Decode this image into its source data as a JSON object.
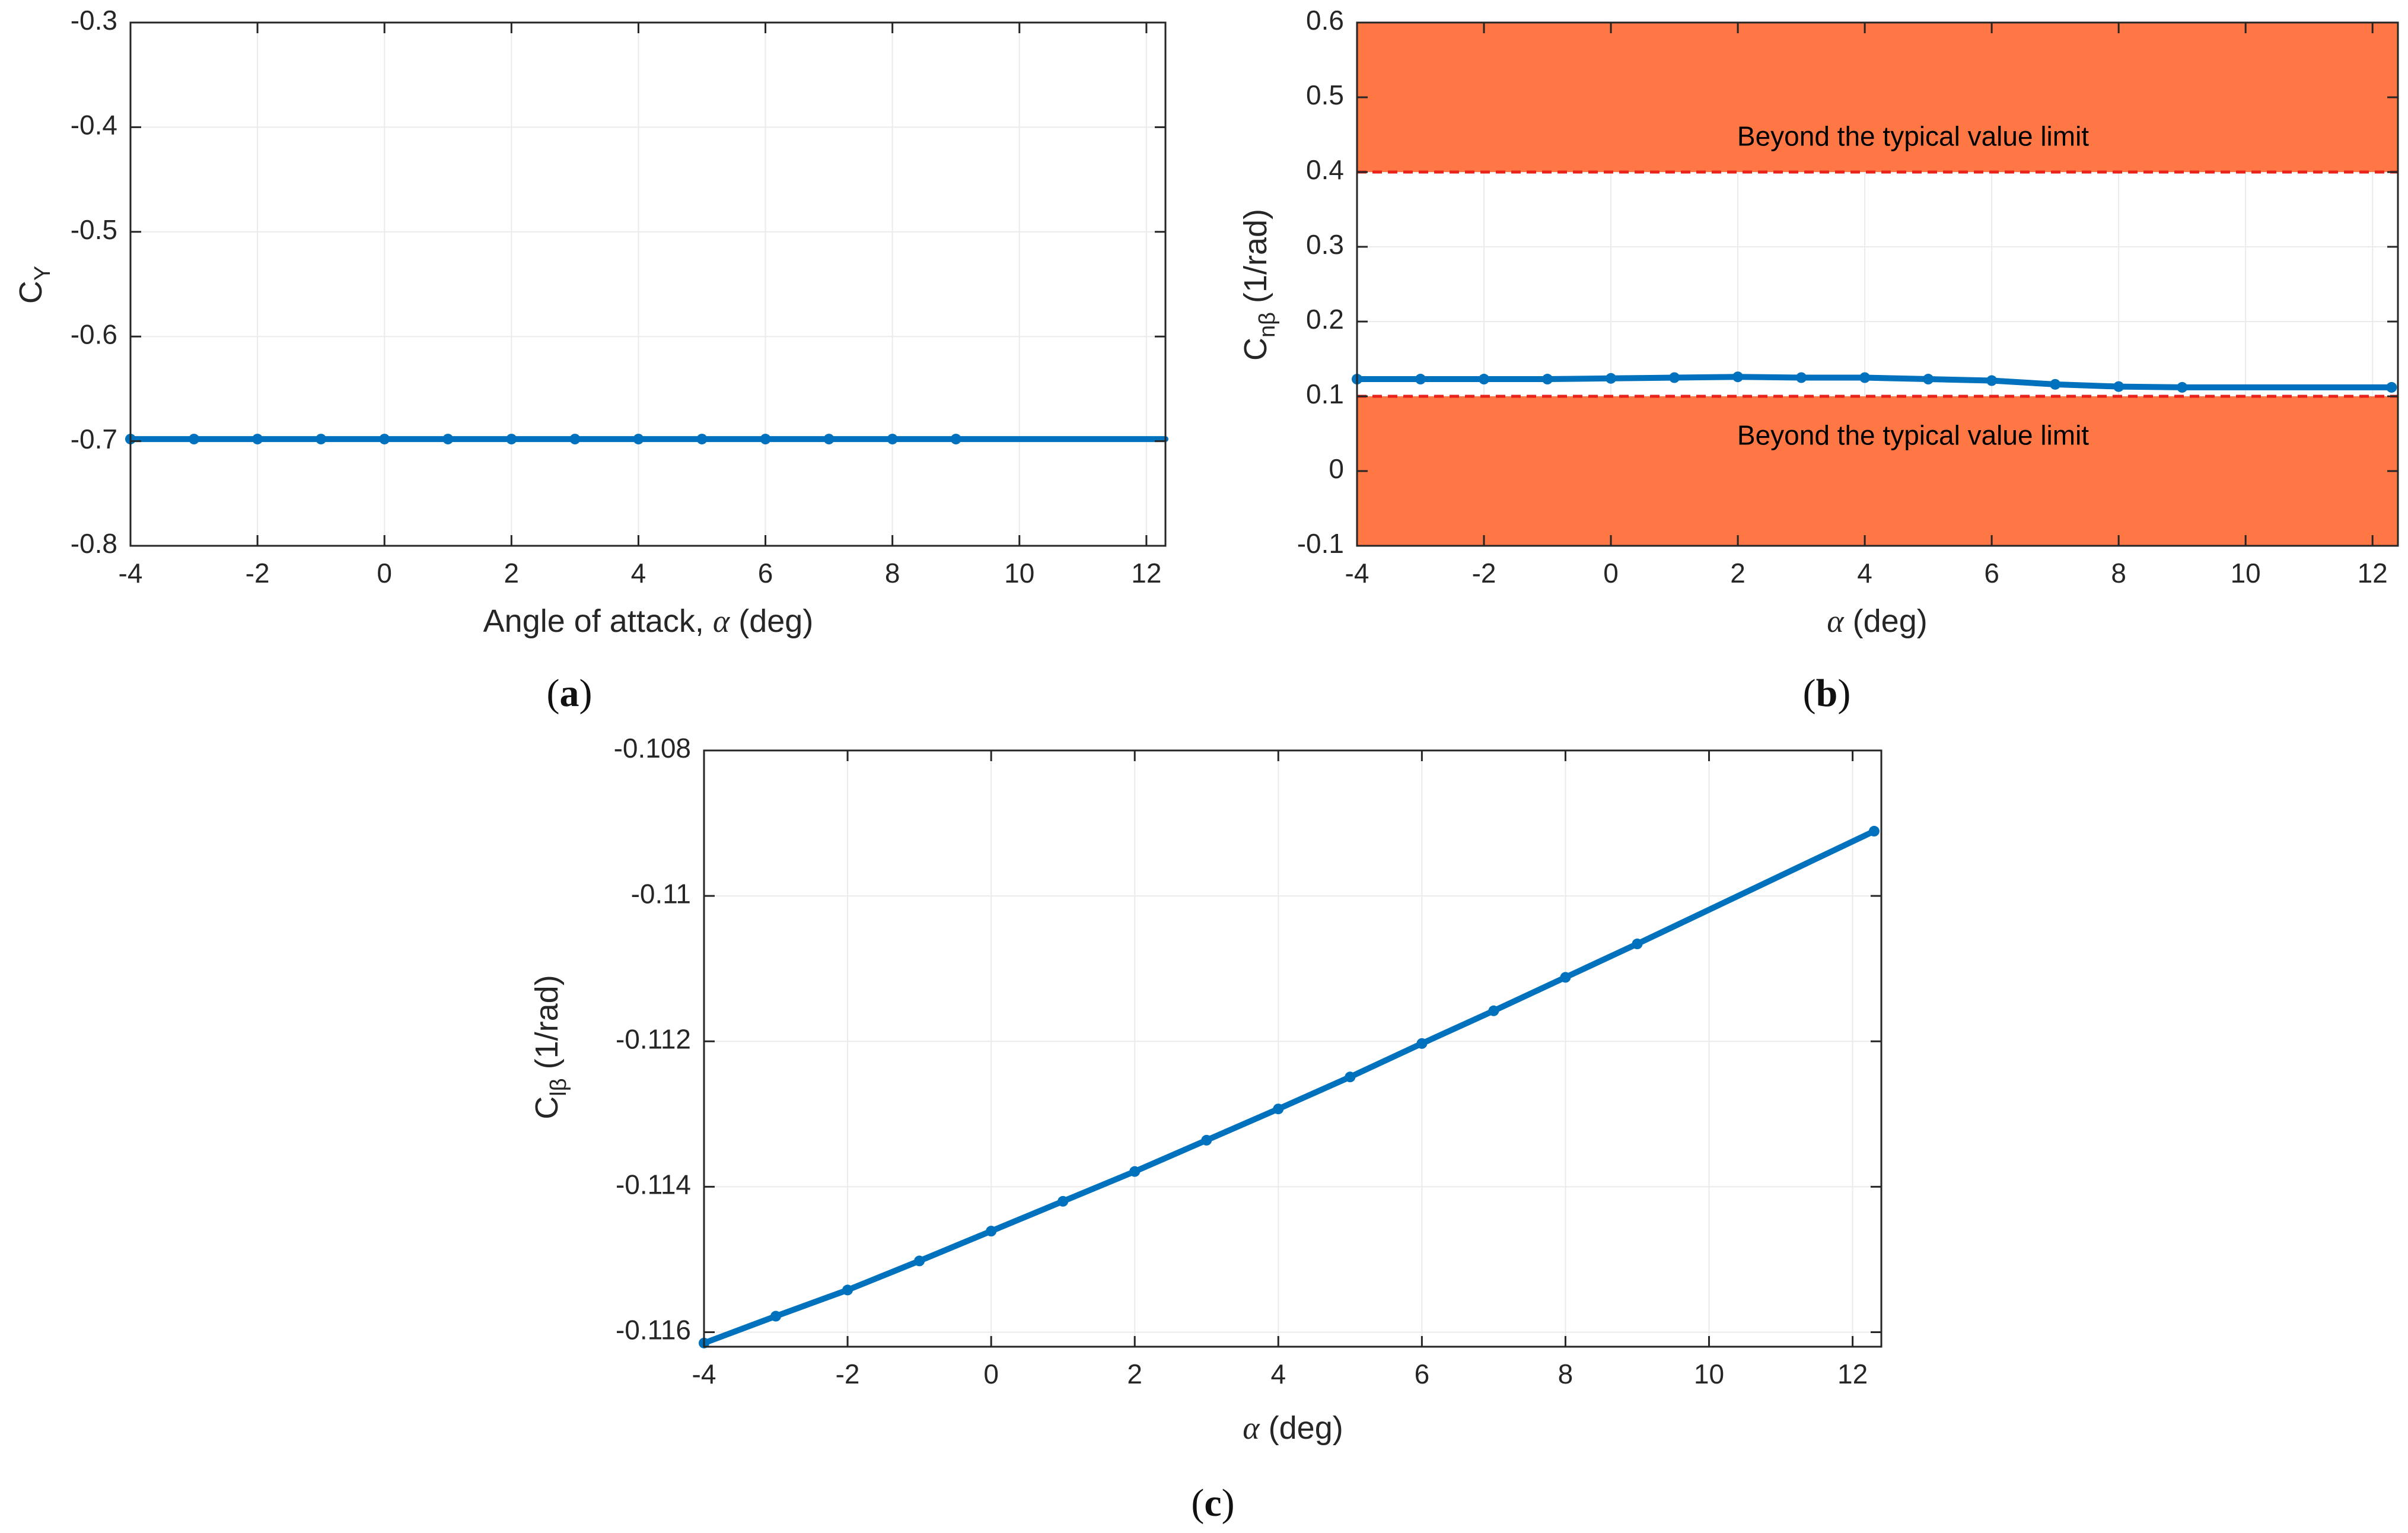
{
  "colors": {
    "series": "#0072BD",
    "band": "#FF7744",
    "limit_line": "#E8231C",
    "grid": "#ebebeb",
    "axes": "#262626"
  },
  "chart_data": [
    {
      "id": "a",
      "type": "line",
      "caption_letter": "a",
      "xlabel_text": "Angle of attack, ",
      "xlabel_symbol": "α",
      "xlabel_unit": " (deg)",
      "ylabel_main": "C",
      "ylabel_sub": "Y",
      "ylabel_unit": "",
      "xlim": [
        -4,
        12.3
      ],
      "ylim": [
        -0.8,
        -0.3
      ],
      "xticks": [
        -4,
        -2,
        0,
        2,
        4,
        6,
        8,
        10,
        12
      ],
      "xtick_labels": [
        "-4",
        "-2",
        "0",
        "2",
        "4",
        "6",
        "8",
        "10",
        "12"
      ],
      "yticks": [
        -0.8,
        -0.7,
        -0.6,
        -0.5,
        -0.4,
        -0.3
      ],
      "ytick_labels": [
        "-0.8",
        "-0.7",
        "-0.6",
        "-0.5",
        "-0.4",
        "-0.3"
      ],
      "grid": true,
      "series": [
        {
          "name": "C_Y",
          "x": [
            -4,
            -3,
            -2,
            -1,
            0,
            1,
            2,
            3,
            4,
            5,
            6,
            7,
            8,
            9,
            12.3
          ],
          "y": [
            -0.698,
            -0.698,
            -0.698,
            -0.698,
            -0.698,
            -0.698,
            -0.698,
            -0.698,
            -0.698,
            -0.698,
            -0.698,
            -0.698,
            -0.698,
            -0.698,
            -0.698
          ],
          "marker_x": [
            -4,
            -3,
            -2,
            -1,
            0,
            1,
            2,
            3,
            4,
            5,
            6,
            7,
            8,
            9
          ],
          "marker_y": [
            -0.698,
            -0.698,
            -0.698,
            -0.698,
            -0.698,
            -0.698,
            -0.698,
            -0.698,
            -0.698,
            -0.698,
            -0.698,
            -0.698,
            -0.698,
            -0.698
          ]
        }
      ],
      "bands": [],
      "limit_lines": []
    },
    {
      "id": "b",
      "type": "line",
      "caption_letter": "b",
      "xlabel_text": "",
      "xlabel_symbol": "α",
      "xlabel_unit": " (deg)",
      "ylabel_main": "C",
      "ylabel_sub": "nβ",
      "ylabel_unit": " (1/rad)",
      "xlim": [
        -4,
        12.4
      ],
      "ylim": [
        -0.1,
        0.6
      ],
      "xticks": [
        -4,
        -2,
        0,
        2,
        4,
        6,
        8,
        10,
        12
      ],
      "xtick_labels": [
        "-4",
        "-2",
        "0",
        "2",
        "4",
        "6",
        "8",
        "10",
        "12"
      ],
      "yticks": [
        -0.1,
        0,
        0.1,
        0.2,
        0.3,
        0.4,
        0.5,
        0.6
      ],
      "ytick_labels": [
        "-0.1",
        "0",
        "0.1",
        "0.2",
        "0.3",
        "0.4",
        "0.5",
        "0.6"
      ],
      "grid": true,
      "series": [
        {
          "name": "C_nβ",
          "x": [
            -4,
            -3,
            -2,
            -1,
            0,
            1,
            2,
            3,
            4,
            5,
            6,
            7,
            8,
            9,
            12.3
          ],
          "y": [
            0.123,
            0.123,
            0.123,
            0.123,
            0.124,
            0.125,
            0.126,
            0.125,
            0.125,
            0.123,
            0.121,
            0.116,
            0.113,
            0.112,
            0.112
          ],
          "marker_x": [
            -4,
            -3,
            -2,
            -1,
            0,
            1,
            2,
            3,
            4,
            5,
            6,
            7,
            8,
            9,
            12.3
          ],
          "marker_y": [
            0.123,
            0.123,
            0.123,
            0.123,
            0.124,
            0.125,
            0.126,
            0.125,
            0.125,
            0.123,
            0.121,
            0.116,
            0.113,
            0.112,
            0.112
          ]
        }
      ],
      "bands": [
        {
          "y0": 0.4,
          "y1": 0.6,
          "label": "Beyond the typical value limit",
          "label_y": 0.445
        },
        {
          "y0": -0.1,
          "y1": 0.1,
          "label": "Beyond the typical value limit",
          "label_y": 0.045
        }
      ],
      "limit_lines": [
        0.4,
        0.1
      ]
    },
    {
      "id": "c",
      "type": "line",
      "caption_letter": "c",
      "xlabel_text": "",
      "xlabel_symbol": "α",
      "xlabel_unit": " (deg)",
      "ylabel_main": "C",
      "ylabel_sub": "lβ",
      "ylabel_unit": " (1/rad)",
      "xlim": [
        -4,
        12.4
      ],
      "ylim": [
        -0.1162,
        -0.108
      ],
      "xticks": [
        -4,
        -2,
        0,
        2,
        4,
        6,
        8,
        10,
        12
      ],
      "xtick_labels": [
        "-4",
        "-2",
        "0",
        "2",
        "4",
        "6",
        "8",
        "10",
        "12"
      ],
      "yticks": [
        -0.116,
        -0.114,
        -0.112,
        -0.11,
        -0.108
      ],
      "ytick_labels": [
        "-0.116",
        "-0.114",
        "-0.112",
        "-0.11",
        "-0.108"
      ],
      "grid": true,
      "series": [
        {
          "name": "C_lβ",
          "x": [
            -4,
            -3,
            -2,
            -1,
            0,
            1,
            2,
            3,
            4,
            5,
            6,
            7,
            8,
            9,
            12.3
          ],
          "y": [
            -0.11615,
            -0.11578,
            -0.11542,
            -0.11502,
            -0.11461,
            -0.1142,
            -0.11379,
            -0.11336,
            -0.11293,
            -0.11249,
            -0.11203,
            -0.11158,
            -0.11112,
            -0.11066,
            -0.10911
          ],
          "marker_x": [
            -4,
            -3,
            -2,
            -1,
            0,
            1,
            2,
            3,
            4,
            5,
            6,
            7,
            8,
            9,
            12.3
          ],
          "marker_y": [
            -0.11615,
            -0.11578,
            -0.11542,
            -0.11502,
            -0.11461,
            -0.1142,
            -0.11379,
            -0.11336,
            -0.11293,
            -0.11249,
            -0.11203,
            -0.11158,
            -0.11112,
            -0.11066,
            -0.10911
          ]
        }
      ],
      "bands": [],
      "limit_lines": []
    }
  ]
}
